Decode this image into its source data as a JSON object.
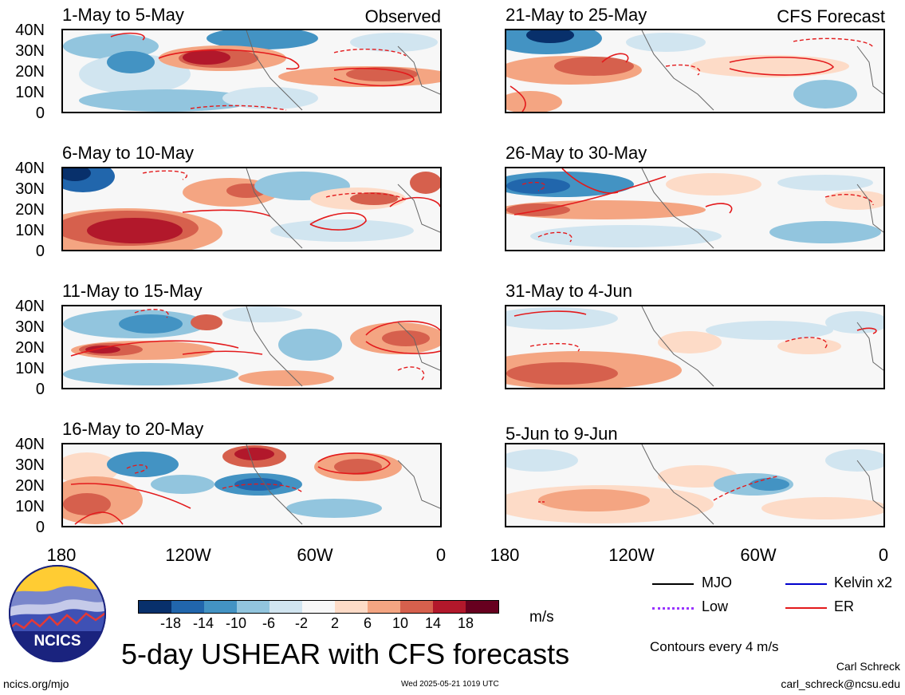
{
  "panels": {
    "obs1": {
      "title": "1-May to 5-May",
      "tag": "Observed"
    },
    "obs2": {
      "title": "6-May to 10-May"
    },
    "obs3": {
      "title": "11-May to 15-May"
    },
    "obs4": {
      "title": "16-May to 20-May"
    },
    "fc1": {
      "title": "21-May to 25-May",
      "tag": "CFS Forecast"
    },
    "fc2": {
      "title": "26-May to 30-May"
    },
    "fc3": {
      "title": "31-May to 4-Jun"
    },
    "fc4": {
      "title": "5-Jun to 9-Jun"
    }
  },
  "y_axis_labels": [
    "40N",
    "30N",
    "20N",
    "10N",
    "0"
  ],
  "x_axis_labels": [
    "180",
    "120W",
    "60W",
    "0"
  ],
  "colorbar": {
    "labels": [
      "-18",
      "-14",
      "-10",
      "-6",
      "-2",
      "2",
      "6",
      "10",
      "14",
      "18"
    ],
    "unit": "m/s",
    "colors": [
      "#08306b",
      "#2166ac",
      "#4393c3",
      "#92c5de",
      "#d1e5f0",
      "#f7f7f7",
      "#fddbc7",
      "#f4a582",
      "#d6604d",
      "#b2182b",
      "#67001f"
    ]
  },
  "legend": {
    "mjo": {
      "label": "MJO",
      "color": "#000000"
    },
    "kelvin": {
      "label": "Kelvin x2",
      "color": "#0000cc"
    },
    "low": {
      "label": "Low",
      "color": "#9933ff"
    },
    "er": {
      "label": "ER",
      "color": "#e31a1c"
    }
  },
  "contour_note": "Contours every 4 m/s",
  "main_title": "5-day USHEAR with CFS forecasts",
  "logo_text": "NCICS",
  "url": "ncics.org/mjo",
  "timestamp": "Wed 2025-05-21 1019 UTC",
  "author_name": "Carl Schreck",
  "author_email": "carl_schreck@ncsu.edu"
}
